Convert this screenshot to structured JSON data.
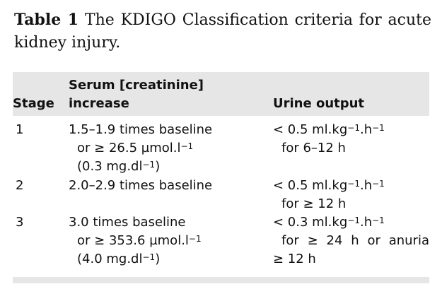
{
  "caption": {
    "label": "Table 1",
    "text": "The KDIGO Classification criteria for acute kidney injury."
  },
  "table": {
    "headers": {
      "stage": "Stage",
      "serum_line1": "Serum [creatinine]",
      "serum_line2": "increase",
      "urine": "Urine output"
    },
    "rows": [
      {
        "stage": "1",
        "serum": [
          "1.5–1.9 times baseline",
          "or ≥ 26.5 µmol.l",
          "(0.3 mg.dl",
          ")"
        ],
        "serum_sup": [
          "−1",
          "−1"
        ],
        "urine": [
          "< 0.5 ml.kg",
          ".h",
          "for 6–12 h"
        ],
        "urine_sup": [
          "−1",
          "−1"
        ]
      },
      {
        "stage": "2",
        "serum": [
          "2.0–2.9 times baseline"
        ],
        "urine": [
          "< 0.5 ml.kg",
          ".h",
          "for ≥ 12 h"
        ],
        "urine_sup": [
          "−1",
          "−1"
        ]
      },
      {
        "stage": "3",
        "serum": [
          "3.0 times baseline",
          "or ≥ 353.6 µmol.l",
          "(4.0 mg.dl",
          ")"
        ],
        "serum_sup": [
          "−1",
          "−1"
        ],
        "urine": [
          "< 0.3 ml.kg",
          ".h",
          "for ≥ 24 h or anuria",
          "≥ 12 h"
        ],
        "urine_sup": [
          "−1",
          "−1"
        ]
      }
    ]
  }
}
